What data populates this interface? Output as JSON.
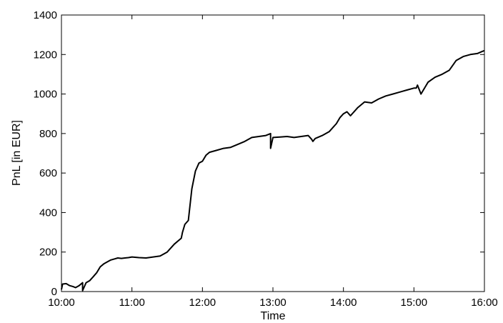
{
  "chart_data": {
    "type": "line",
    "title": "",
    "xlabel": "Time",
    "ylabel": "PnL [in EUR]",
    "x_unit": "time of day (HH:MM)",
    "xlim": [
      "10:00",
      "16:00"
    ],
    "ylim": [
      0,
      1400
    ],
    "x_ticks": [
      "10:00",
      "11:00",
      "12:00",
      "13:00",
      "14:00",
      "15:00",
      "16:00"
    ],
    "y_ticks": [
      0,
      200,
      400,
      600,
      800,
      1000,
      1200,
      1400
    ],
    "grid": false,
    "legend": false,
    "line_color": "#000000",
    "series": [
      {
        "x": [
          "10:00",
          "10:01",
          "10:04",
          "10:07",
          "10:10",
          "10:12",
          "10:15",
          "10:18",
          "10:18",
          "10:21",
          "10:24",
          "10:27",
          "10:30",
          "10:33",
          "10:36",
          "10:39",
          "10:42",
          "10:45",
          "10:48",
          "10:51",
          "10:54",
          "10:57",
          "11:00",
          "11:06",
          "11:12",
          "11:18",
          "11:24",
          "11:30",
          "11:36",
          "11:42",
          "11:43",
          "11:45",
          "11:48",
          "11:51",
          "11:54",
          "11:57",
          "12:00",
          "12:03",
          "12:06",
          "12:12",
          "12:18",
          "12:24",
          "12:30",
          "12:36",
          "12:42",
          "12:48",
          "12:54",
          "12:58",
          "12:58",
          "13:00",
          "13:06",
          "13:12",
          "13:18",
          "13:24",
          "13:30",
          "13:33",
          "13:34",
          "13:36",
          "13:42",
          "13:48",
          "13:54",
          "13:57",
          "14:00",
          "14:03",
          "14:06",
          "14:12",
          "14:18",
          "14:24",
          "14:30",
          "14:36",
          "14:42",
          "14:48",
          "14:54",
          "15:00",
          "15:02",
          "15:03",
          "15:06",
          "15:12",
          "15:18",
          "15:24",
          "15:30",
          "15:36",
          "15:42",
          "15:48",
          "15:54",
          "15:58",
          "16:00"
        ],
        "y": [
          10,
          38,
          40,
          30,
          25,
          20,
          30,
          45,
          5,
          45,
          55,
          75,
          95,
          125,
          140,
          150,
          160,
          165,
          170,
          168,
          170,
          172,
          175,
          172,
          170,
          175,
          180,
          200,
          240,
          270,
          300,
          340,
          360,
          520,
          610,
          650,
          660,
          690,
          705,
          715,
          725,
          730,
          745,
          760,
          780,
          785,
          790,
          800,
          725,
          780,
          782,
          785,
          780,
          785,
          790,
          770,
          760,
          775,
          790,
          810,
          850,
          880,
          900,
          910,
          890,
          930,
          960,
          955,
          975,
          990,
          1000,
          1010,
          1020,
          1030,
          1030,
          1045,
          1000,
          1060,
          1085,
          1100,
          1120,
          1170,
          1190,
          1200,
          1205,
          1215,
          1220
        ]
      }
    ]
  }
}
